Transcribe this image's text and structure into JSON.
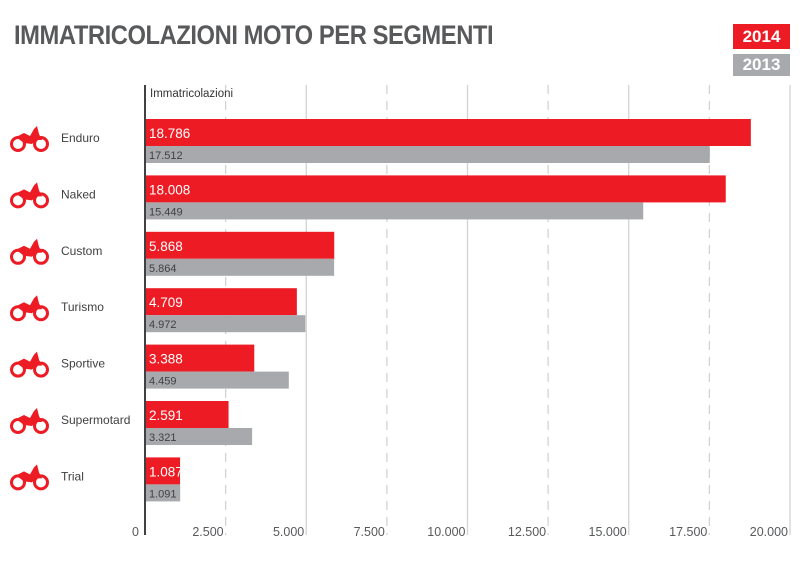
{
  "title": "IMMATRICOLAZIONI MOTO PER SEGMENTI",
  "colors": {
    "2014": "#ed1c24",
    "2013": "#a7a9ac",
    "text": "#58595b"
  },
  "chart_data": {
    "type": "bar",
    "orientation": "horizontal",
    "title": "IMMATRICOLAZIONI MOTO PER SEGMENTI",
    "xlabel": "Immatricolazioni",
    "categories": [
      "Enduro",
      "Naked",
      "Custom",
      "Turismo",
      "Sportive",
      "Supermotard",
      "Trial"
    ],
    "icons": [
      "enduro-motorcycle-icon",
      "naked-motorcycle-icon",
      "custom-motorcycle-icon",
      "touring-motorcycle-icon",
      "sport-motorcycle-icon",
      "supermotard-motorcycle-icon",
      "trial-motorcycle-icon"
    ],
    "series": [
      {
        "name": "2014",
        "values": [
          18786,
          18008,
          5868,
          4709,
          3388,
          2591,
          1087
        ],
        "labels": [
          "18.786",
          "18.008",
          "5.868",
          "4.709",
          "3.388",
          "2.591",
          "1.087"
        ]
      },
      {
        "name": "2013",
        "values": [
          17512,
          15449,
          5864,
          4972,
          4459,
          3321,
          1091
        ],
        "labels": [
          "17.512",
          "15.449",
          "5.864",
          "4.972",
          "4.459",
          "3.321",
          "1.091"
        ]
      }
    ],
    "xlim": [
      0,
      20000
    ],
    "ticks": [
      0,
      2500,
      5000,
      7500,
      10000,
      12500,
      15000,
      17500,
      20000
    ],
    "tick_labels": [
      "0",
      "2.500",
      "5.000",
      "7.500",
      "10.000",
      "12.500",
      "15.000",
      "17.500",
      "20.000"
    ],
    "grid": true,
    "legend": "top-right"
  }
}
